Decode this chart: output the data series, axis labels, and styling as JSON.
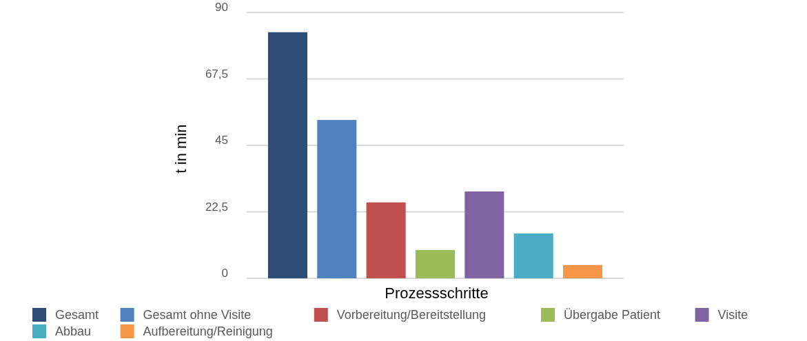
{
  "chart_data": {
    "type": "bar",
    "ylabel": "t in min",
    "xlabel": "Prozessschritte",
    "categories": [
      null
    ],
    "series": [
      {
        "name": "Gesamt",
        "color": "#2d4f77",
        "values": [
          83.3
        ]
      },
      {
        "name": "Gesamt ohne Visite",
        "color": "#4f81bd",
        "values": [
          53.6
        ]
      },
      {
        "name": "Vorbereitung/Bereitstellung",
        "color": "#c0504d",
        "values": [
          25.7
        ]
      },
      {
        "name": "Übergabe Patient",
        "color": "#9bbb59",
        "values": [
          9.6
        ]
      },
      {
        "name": "Visite",
        "color": "#8064a2",
        "values": [
          29.4
        ]
      },
      {
        "name": "Abbau",
        "color": "#4bacc6",
        "values": [
          15.2
        ]
      },
      {
        "name": "Aufbereitung/Reinigung",
        "color": "#f79646",
        "values": [
          4.5
        ]
      }
    ],
    "ylim": [
      0,
      90
    ],
    "yticks": [
      0,
      {
        "value": 22.5,
        "label": "22,5"
      },
      45,
      {
        "value": 67.5,
        "label": "67,5"
      },
      90
    ],
    "grid": "y",
    "legend": "bottom"
  }
}
